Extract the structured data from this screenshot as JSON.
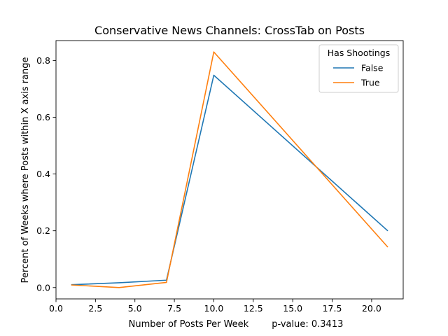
{
  "chart_data": {
    "type": "line",
    "title": "Conservative News Channels: CrossTab on Posts",
    "xlabel": "Number of Posts Per Week        p-value: 0.3413",
    "ylabel": "Percent of Weeks where Posts within X axis range",
    "xlim": [
      0.0,
      22.0
    ],
    "ylim": [
      -0.04,
      0.87
    ],
    "xticks": [
      0.0,
      2.5,
      5.0,
      7.5,
      10.0,
      12.5,
      15.0,
      17.5,
      20.0
    ],
    "xtick_labels": [
      "0.0",
      "2.5",
      "5.0",
      "7.5",
      "10.0",
      "12.5",
      "15.0",
      "17.5",
      "20.0"
    ],
    "yticks": [
      0.0,
      0.2,
      0.4,
      0.6,
      0.8
    ],
    "ytick_labels": [
      "0.0",
      "0.2",
      "0.4",
      "0.6",
      "0.8"
    ],
    "grid": false,
    "legend": {
      "title": "Has Shootings",
      "placement": "top-right"
    },
    "series": [
      {
        "name": "False",
        "color": "#1f77b4",
        "x": [
          1,
          4,
          7,
          10,
          21
        ],
        "y": [
          0.01,
          0.017,
          0.026,
          0.748,
          0.201
        ]
      },
      {
        "name": "True",
        "color": "#ff7f0e",
        "x": [
          1,
          4,
          7,
          10,
          21
        ],
        "y": [
          0.009,
          0.0,
          0.018,
          0.83,
          0.144
        ]
      }
    ]
  }
}
